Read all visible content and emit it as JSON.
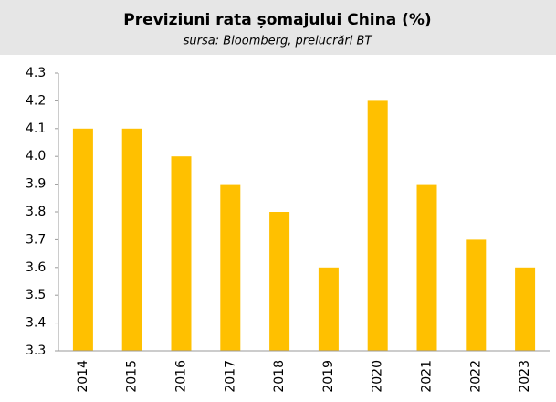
{
  "chart_data": {
    "type": "bar",
    "title": "Previziuni rata șomajului China (%)",
    "subtitle": "sursa: Bloomberg, prelucrări BT",
    "categories": [
      "2014",
      "2015",
      "2016",
      "2017",
      "2018",
      "2019",
      "2020",
      "2021",
      "2022",
      "2023"
    ],
    "values": [
      4.1,
      4.1,
      4.0,
      3.9,
      3.8,
      3.6,
      4.2,
      3.9,
      3.7,
      3.6
    ],
    "color": "#ffc000",
    "ylim": [
      3.3,
      4.3
    ],
    "yticks": [
      3.3,
      3.4,
      3.5,
      3.6,
      3.7,
      3.8,
      3.9,
      {
        "value": 4,
        "label": "4.0"
      },
      4.1,
      4.2,
      4.3
    ],
    "grid": false
  }
}
